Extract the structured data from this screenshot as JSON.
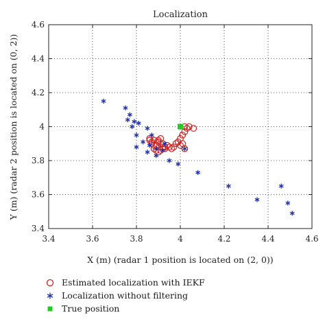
{
  "chart_data": {
    "type": "scatter",
    "title": "Localization",
    "xlabel": "X (m) (radar 1 position is located on (2, 0))",
    "ylabel": "Y (m) (radar 2 position is located on (0, 2))",
    "xlim": [
      3.4,
      4.6
    ],
    "ylim": [
      3.4,
      4.6
    ],
    "xticks": [
      "3.4",
      "3.6",
      "3.8",
      "4",
      "4.2",
      "4.4",
      "4.6"
    ],
    "yticks": [
      "3.4",
      "3.6",
      "3.8",
      "4",
      "4.2",
      "4.4",
      "4.6"
    ],
    "grid": true,
    "legend_position": "bottom",
    "series": [
      {
        "name": "Estimated localization with IEKF",
        "marker": "circle",
        "color": "#cc2222",
        "points": [
          [
            4.02,
            4.0
          ],
          [
            4.04,
            4.0
          ],
          [
            4.06,
            3.99
          ],
          [
            4.03,
            3.99
          ],
          [
            4.02,
            3.97
          ],
          [
            4.01,
            3.95
          ],
          [
            4.0,
            3.93
          ],
          [
            3.99,
            3.91
          ],
          [
            4.01,
            3.9
          ],
          [
            4.0,
            3.89
          ],
          [
            3.98,
            3.9
          ],
          [
            3.97,
            3.88
          ],
          [
            3.95,
            3.88
          ],
          [
            3.94,
            3.89
          ],
          [
            3.93,
            3.87
          ],
          [
            3.92,
            3.88
          ],
          [
            3.91,
            3.9
          ],
          [
            3.9,
            3.91
          ],
          [
            3.89,
            3.89
          ],
          [
            3.88,
            3.89
          ],
          [
            3.87,
            3.91
          ],
          [
            3.86,
            3.92
          ],
          [
            3.86,
            3.93
          ],
          [
            3.87,
            3.9
          ],
          [
            3.88,
            3.87
          ],
          [
            3.89,
            3.86
          ],
          [
            3.9,
            3.85
          ],
          [
            3.91,
            3.86
          ],
          [
            3.92,
            3.87
          ],
          [
            3.93,
            3.88
          ],
          [
            3.92,
            3.9
          ],
          [
            3.9,
            3.92
          ],
          [
            3.91,
            3.93
          ],
          [
            3.88,
            3.92
          ],
          [
            3.96,
            3.87
          ],
          [
            4.02,
            3.87
          ]
        ]
      },
      {
        "name": "Localization without filtering",
        "marker": "asterisk",
        "color": "#1f2fa8",
        "points": [
          [
            3.65,
            4.15
          ],
          [
            3.75,
            4.11
          ],
          [
            3.77,
            4.07
          ],
          [
            3.79,
            4.03
          ],
          [
            3.76,
            4.04
          ],
          [
            3.81,
            4.02
          ],
          [
            3.78,
            4.0
          ],
          [
            3.85,
            3.99
          ],
          [
            3.8,
            3.95
          ],
          [
            3.83,
            3.91
          ],
          [
            3.86,
            3.89
          ],
          [
            3.8,
            3.88
          ],
          [
            3.89,
            3.87
          ],
          [
            3.85,
            3.85
          ],
          [
            3.89,
            3.83
          ],
          [
            3.92,
            3.86
          ],
          [
            3.95,
            3.8
          ],
          [
            3.99,
            3.78
          ],
          [
            4.02,
            3.87
          ],
          [
            4.08,
            3.73
          ],
          [
            4.22,
            3.65
          ],
          [
            4.35,
            3.57
          ],
          [
            4.46,
            3.65
          ],
          [
            4.49,
            3.55
          ],
          [
            4.51,
            3.49
          ],
          [
            3.93,
            3.9
          ],
          [
            3.87,
            3.95
          ]
        ]
      },
      {
        "name": "True position",
        "marker": "square",
        "color": "#22cc22",
        "points": [
          [
            4.0,
            4.0
          ]
        ]
      }
    ]
  }
}
